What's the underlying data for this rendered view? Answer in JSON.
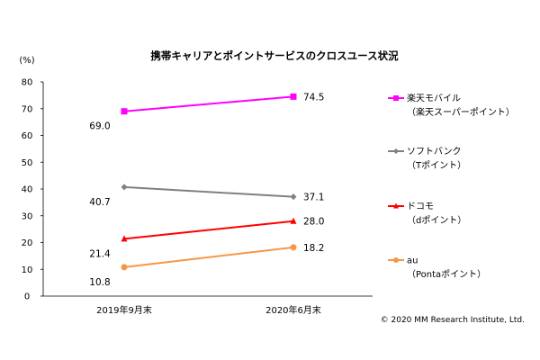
{
  "chart_data": {
    "type": "line",
    "title": "携帯キャリアとポイントサービスのクロスユース状況",
    "unit_label": "(%)",
    "categories": [
      "2019年9月末",
      "2020年6月末"
    ],
    "ylim": [
      0,
      80
    ],
    "yticks": [
      "0",
      "10",
      "20",
      "30",
      "40",
      "50",
      "60",
      "70",
      "80"
    ],
    "grid": false,
    "legend_position": "right",
    "series": [
      {
        "name": "楽天モバイル",
        "sub": "（楽天スーパーポイント）",
        "values": [
          69.0,
          74.5
        ],
        "labels": [
          "69.0",
          "74.5"
        ],
        "color": "#ff00ff",
        "marker": "square"
      },
      {
        "name": "ソフトバンク",
        "sub": "（Tポイント）",
        "values": [
          40.7,
          37.1
        ],
        "labels": [
          "40.7",
          "37.1"
        ],
        "color": "#808080",
        "marker": "diamond"
      },
      {
        "name": "ドコモ",
        "sub": "（dポイント）",
        "values": [
          21.4,
          28.0
        ],
        "labels": [
          "21.4",
          "28.0"
        ],
        "color": "#ff0000",
        "marker": "triangle"
      },
      {
        "name": "au",
        "sub": "（Pontaポイント）",
        "values": [
          10.8,
          18.2
        ],
        "labels": [
          "10.8",
          "18.2"
        ],
        "color": "#f79646",
        "marker": "circle"
      }
    ]
  },
  "copyright": "© 2020  MM Research Institute, Ltd."
}
